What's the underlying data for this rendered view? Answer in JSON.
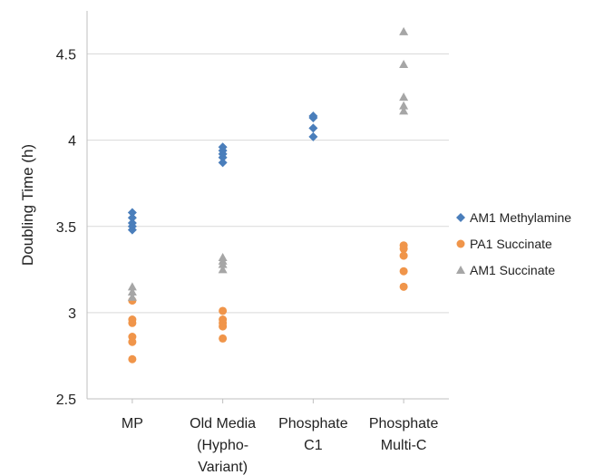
{
  "chart_data": {
    "type": "scatter",
    "ylabel": "Doubling Time (h)",
    "xlabel": "",
    "ylim": [
      2.5,
      4.75
    ],
    "yticks": [
      "2.5",
      "3",
      "3.5",
      "4",
      "4.5"
    ],
    "grid": true,
    "legend_position": "right",
    "categories": [
      [
        "MP"
      ],
      [
        "Old Media",
        "(Hypho-",
        "Variant)"
      ],
      [
        "Phosphate",
        "C1"
      ],
      [
        "Phosphate",
        "Multi-C"
      ]
    ],
    "series": [
      {
        "name": "AM1 Methylamine",
        "marker": "diamond",
        "color": "#4a7ebb",
        "values": [
          [
            3.58,
            3.55,
            3.52,
            3.5,
            3.48
          ],
          [
            3.96,
            3.94,
            3.92,
            3.9,
            3.87
          ],
          [
            4.14,
            4.13,
            4.07,
            4.02
          ],
          []
        ]
      },
      {
        "name": "PA1 Succinate",
        "marker": "circle",
        "color": "#f0954a",
        "values": [
          [
            3.07,
            2.96,
            2.94,
            2.86,
            2.83,
            2.73
          ],
          [
            3.01,
            2.96,
            2.94,
            2.92,
            2.85
          ],
          [],
          [
            3.39,
            3.37,
            3.33,
            3.24,
            3.15
          ]
        ]
      },
      {
        "name": "AM1 Succinate",
        "marker": "triangle",
        "color": "#a6a6a6",
        "values": [
          [
            3.15,
            3.12,
            3.09
          ],
          [
            3.32,
            3.3,
            3.28,
            3.25
          ],
          [],
          [
            4.63,
            4.44,
            4.25,
            4.2,
            4.17
          ]
        ]
      }
    ]
  }
}
